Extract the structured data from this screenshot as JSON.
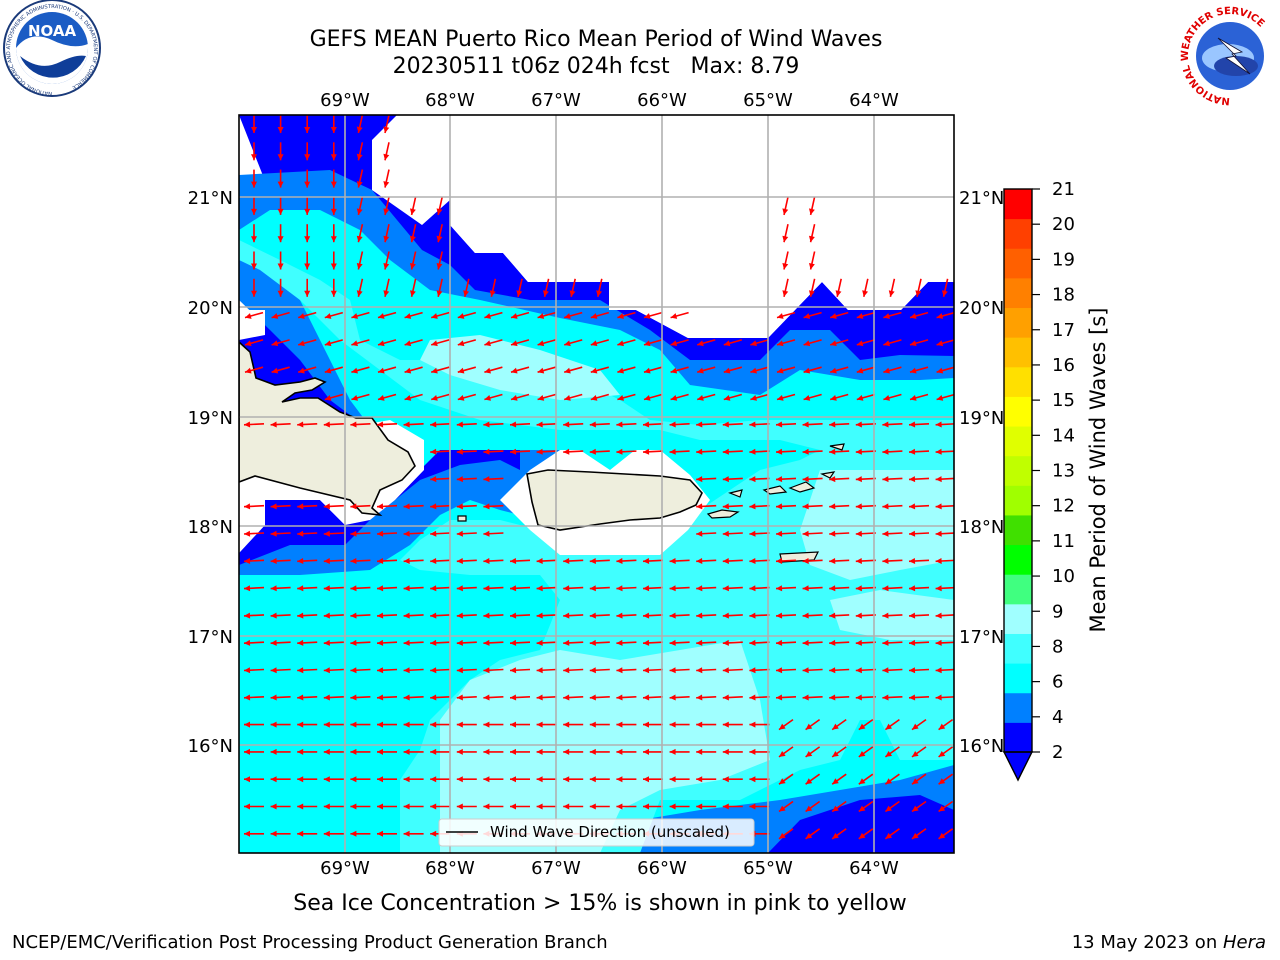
{
  "header": {
    "title_line1": "GEFS MEAN Puerto Rico Mean Period of Wind Waves",
    "title_line2": "20230511 t06z 024h fcst   Max: 8.79"
  },
  "logos": {
    "noaa_text": "NOAA",
    "noaa_ring_text": "NATIONAL OCEANIC AND ATMOSPHERIC ADMINISTRATION · U.S. DEPARTMENT OF COMMERCE",
    "nws_ring_text": "NATIONAL WEATHER SERVICE"
  },
  "map": {
    "lon_labels": [
      "69°W",
      "68°W",
      "67°W",
      "66°W",
      "65°W",
      "64°W"
    ],
    "lat_labels": [
      "21°N",
      "20°N",
      "19°N",
      "18°N",
      "17°N",
      "16°N"
    ],
    "legend_label": "Wind Wave Direction (unscaled)",
    "vector_color": "#ff0000",
    "land_color": "#eeeedd"
  },
  "colorbar": {
    "label": "Mean Period of Wind Waves [s]",
    "ticks": [
      "21",
      "20",
      "19",
      "18",
      "17",
      "16",
      "15",
      "14",
      "13",
      "12",
      "11",
      "10",
      "9",
      "8",
      "6",
      "4",
      "2"
    ],
    "colors": [
      "#0000ff",
      "#0080ff",
      "#00ffff",
      "#40ffff",
      "#a0ffff",
      "#40ff80",
      "#00ff00",
      "#40e000",
      "#a0ff00",
      "#c0ff00",
      "#e0ff00",
      "#ffff00",
      "#ffe000",
      "#ffc000",
      "#ffa000",
      "#ff8000",
      "#ff6000",
      "#ff4000",
      "#ff0000"
    ]
  },
  "footer": {
    "subtitle": "Sea Ice Concentration > 15% is shown in pink to yellow",
    "left": "NCEP/EMC/Verification Post Processing Product Generation Branch",
    "right_date": "13 May 2023 on ",
    "right_host": "Hera"
  }
}
